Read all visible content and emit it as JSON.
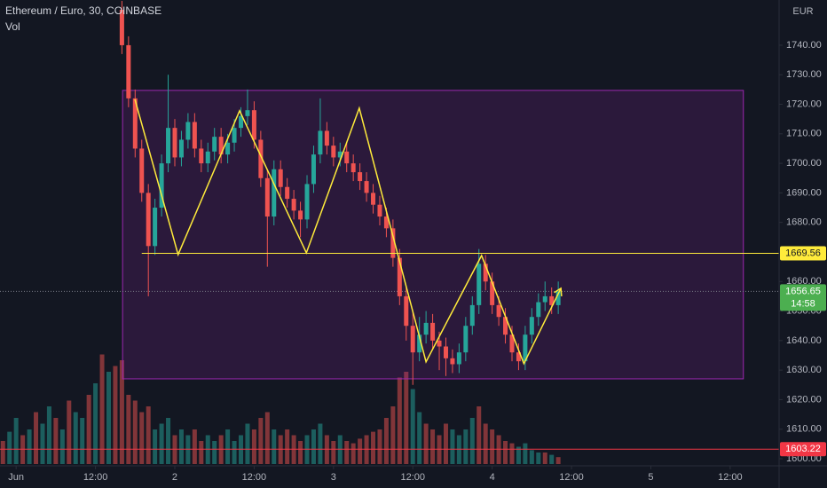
{
  "chart_data": {
    "type": "candlestick",
    "title": "Ethereum / Euro, 30, COINBASE",
    "indicator": "Vol",
    "currency": "EUR",
    "up_color": "#26a69a",
    "down_color": "#ef5350",
    "x": [
      16,
      17,
      18,
      19,
      20,
      21,
      22,
      23,
      24,
      25,
      26,
      27,
      28,
      29,
      30,
      31,
      32,
      33,
      34,
      35,
      36,
      37,
      38,
      39,
      40,
      41,
      42,
      43,
      44,
      45,
      46,
      47,
      48,
      49,
      50,
      51,
      52,
      53,
      54,
      55,
      56,
      57,
      58,
      59,
      60,
      61,
      62,
      63,
      64,
      65,
      66,
      67,
      68,
      69,
      70,
      71,
      72,
      73,
      74,
      75,
      76,
      77,
      78,
      79,
      80,
      81,
      82
    ],
    "open": [
      1752,
      1740,
      1722,
      1705,
      1690,
      1672,
      1685,
      1700,
      1712,
      1702,
      1708,
      1714,
      1705,
      1700,
      1704,
      1709,
      1703,
      1707,
      1712,
      1716,
      1718,
      1708,
      1695,
      1682,
      1698,
      1692,
      1688,
      1684,
      1681,
      1693,
      1703,
      1711,
      1706,
      1702,
      1704,
      1700,
      1697,
      1694,
      1690,
      1686,
      1682,
      1678,
      1668,
      1655,
      1645,
      1636,
      1642,
      1646,
      1640,
      1638,
      1634,
      1632,
      1636,
      1645,
      1652,
      1666,
      1660,
      1652,
      1648,
      1642,
      1636,
      1633,
      1642,
      1648,
      1653,
      1655,
      1652
    ],
    "high": [
      1755,
      1743,
      1725,
      1708,
      1693,
      1688,
      1703,
      1730,
      1715,
      1711,
      1717,
      1717,
      1708,
      1707,
      1712,
      1712,
      1710,
      1715,
      1719,
      1725,
      1721,
      1711,
      1698,
      1701,
      1701,
      1695,
      1691,
      1687,
      1696,
      1706,
      1722,
      1714,
      1709,
      1707,
      1707,
      1703,
      1700,
      1697,
      1693,
      1689,
      1685,
      1681,
      1671,
      1658,
      1650,
      1648,
      1650,
      1649,
      1643,
      1641,
      1637,
      1639,
      1648,
      1655,
      1671,
      1669,
      1663,
      1655,
      1651,
      1645,
      1639,
      1645,
      1651,
      1656,
      1660,
      1658,
      1660
    ],
    "low": [
      1737,
      1719,
      1702,
      1687,
      1655,
      1669,
      1682,
      1697,
      1699,
      1699,
      1705,
      1702,
      1697,
      1697,
      1701,
      1700,
      1700,
      1704,
      1709,
      1713,
      1705,
      1692,
      1665,
      1679,
      1689,
      1685,
      1681,
      1675,
      1678,
      1690,
      1700,
      1703,
      1699,
      1699,
      1697,
      1694,
      1691,
      1687,
      1683,
      1679,
      1675,
      1665,
      1652,
      1640,
      1625,
      1633,
      1639,
      1637,
      1630,
      1628,
      1629,
      1629,
      1633,
      1642,
      1649,
      1657,
      1649,
      1645,
      1639,
      1633,
      1630,
      1630,
      1639,
      1645,
      1650,
      1649,
      1649
    ],
    "close": [
      1740,
      1722,
      1705,
      1690,
      1672,
      1685,
      1700,
      1712,
      1702,
      1708,
      1714,
      1705,
      1700,
      1704,
      1709,
      1703,
      1707,
      1712,
      1716,
      1718,
      1708,
      1695,
      1682,
      1698,
      1692,
      1688,
      1684,
      1681,
      1693,
      1703,
      1711,
      1706,
      1702,
      1704,
      1700,
      1697,
      1694,
      1690,
      1686,
      1682,
      1678,
      1668,
      1655,
      1645,
      1636,
      1642,
      1646,
      1640,
      1638,
      1634,
      1632,
      1636,
      1645,
      1652,
      1666,
      1660,
      1652,
      1648,
      1642,
      1636,
      1633,
      1642,
      1648,
      1653,
      1655,
      1652,
      1656.65
    ],
    "xlim": [
      -2.44,
      115.4
    ],
    "xticks": [
      {
        "value": 0,
        "label": "Jun"
      },
      {
        "value": 12,
        "label": "12:00"
      },
      {
        "value": 24,
        "label": "2"
      },
      {
        "value": 36,
        "label": "12:00"
      },
      {
        "value": 48,
        "label": "3"
      },
      {
        "value": 60,
        "label": "12:00"
      },
      {
        "value": 72,
        "label": "4"
      },
      {
        "value": 84,
        "label": "12:00"
      },
      {
        "value": 96,
        "label": "5"
      },
      {
        "value": 108,
        "label": "12:00"
      }
    ],
    "ylim": [
      1596.1,
      1755.3
    ],
    "yticks": [
      {
        "value": 1600,
        "label": "1600.00"
      },
      {
        "value": 1610,
        "label": "1610.00"
      },
      {
        "value": 1620,
        "label": "1620.00"
      },
      {
        "value": 1630,
        "label": "1630.00"
      },
      {
        "value": 1640,
        "label": "1640.00"
      },
      {
        "value": 1650,
        "label": "1650.00"
      },
      {
        "value": 1660,
        "label": "1660.00"
      },
      {
        "value": 1680,
        "label": "1680.00"
      },
      {
        "value": 1690,
        "label": "1690.00"
      },
      {
        "value": 1700,
        "label": "1700.00"
      },
      {
        "value": 1710,
        "label": "1710.00"
      },
      {
        "value": 1720,
        "label": "1720.00"
      },
      {
        "value": 1730,
        "label": "1730.00"
      },
      {
        "value": 1740,
        "label": "1740.00"
      }
    ],
    "grid": false,
    "volume": {
      "vlim": [
        0,
        100
      ],
      "x": [
        -2,
        -1,
        0,
        1,
        2,
        3,
        4,
        5,
        6,
        7,
        8,
        9,
        10,
        11,
        12,
        13,
        14,
        15,
        16,
        17,
        18,
        19,
        20,
        21,
        22,
        23,
        24,
        25,
        26,
        27,
        28,
        29,
        30,
        31,
        32,
        33,
        34,
        35,
        36,
        37,
        38,
        39,
        40,
        41,
        42,
        43,
        44,
        45,
        46,
        47,
        48,
        49,
        50,
        51,
        52,
        53,
        54,
        55,
        56,
        57,
        58,
        59,
        60,
        61,
        62,
        63,
        64,
        65,
        66,
        67,
        68,
        69,
        70,
        71,
        72,
        73,
        74,
        75,
        76,
        77,
        78,
        79,
        80,
        81,
        82
      ],
      "values": [
        20,
        28,
        40,
        25,
        30,
        45,
        35,
        50,
        40,
        30,
        55,
        45,
        40,
        60,
        70,
        95,
        80,
        85,
        90,
        60,
        55,
        45,
        50,
        30,
        35,
        40,
        25,
        30,
        25,
        30,
        20,
        25,
        20,
        25,
        30,
        20,
        25,
        35,
        30,
        40,
        45,
        30,
        25,
        30,
        25,
        20,
        25,
        30,
        35,
        25,
        20,
        25,
        20,
        18,
        22,
        25,
        28,
        30,
        40,
        50,
        75,
        80,
        65,
        45,
        35,
        30,
        25,
        35,
        30,
        25,
        30,
        40,
        50,
        35,
        30,
        25,
        20,
        18,
        15,
        18,
        12,
        10,
        10,
        8,
        6
      ],
      "up": [
        false,
        true,
        true,
        false,
        true,
        false,
        true,
        true,
        false,
        true,
        false,
        true,
        true,
        false,
        true,
        false,
        true,
        false,
        false,
        false,
        false,
        false,
        false,
        true,
        true,
        true,
        false,
        true,
        true,
        false,
        false,
        true,
        true,
        false,
        true,
        true,
        true,
        true,
        false,
        false,
        false,
        true,
        false,
        false,
        false,
        false,
        true,
        true,
        true,
        false,
        false,
        true,
        false,
        false,
        false,
        false,
        false,
        false,
        false,
        false,
        false,
        false,
        true,
        true,
        false,
        false,
        false,
        false,
        true,
        true,
        true,
        true,
        false,
        false,
        false,
        false,
        false,
        false,
        true,
        true,
        true,
        true,
        false,
        true,
        false
      ]
    },
    "box": {
      "x": [
        16.1,
        110.0
      ],
      "y": [
        1627.05,
        1724.7
      ],
      "color": "#9c27b0"
    },
    "level": {
      "value": 1669.56,
      "x0": 19.0,
      "color": "#ffeb3b"
    },
    "last": {
      "value": 1656.65,
      "countdown": "14:58",
      "color": "#4caf50"
    },
    "low_level": {
      "value": 1603.22,
      "color": "#f23645"
    },
    "zigzag": {
      "x": [
        17.96,
        24.5,
        33.8,
        43.9,
        51.9,
        62.0,
        70.4,
        76.8,
        82.4
      ],
      "y": [
        1721.7,
        1669.1,
        1717.8,
        1669.7,
        1718.7,
        1632.8,
        1668.8,
        1632.2,
        1657.7
      ],
      "color": "#ffeb3b"
    }
  }
}
